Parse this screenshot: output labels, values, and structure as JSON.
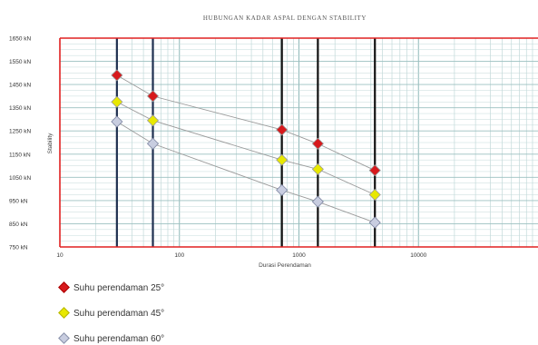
{
  "chart_data": {
    "type": "line",
    "title": "HUBUNGAN KADAR ASPAL DENGAN STABILITY",
    "xlabel": "Durasi Perendaman",
    "ylabel": "Stability",
    "xscale": "log",
    "xlim": [
      10,
      100000
    ],
    "ylim": [
      750,
      1650
    ],
    "yticks": [
      "750 kN",
      "850 kN",
      "950 kN",
      "1050 kN",
      "1150 kN",
      "1250 kN",
      "1350 kN",
      "1450 kN",
      "1550 kN",
      "1650 kN"
    ],
    "xticks": [
      "10",
      "100",
      "1000",
      "10000"
    ],
    "vertical_lines_x": [
      30,
      60,
      720,
      1440,
      4320
    ],
    "series": [
      {
        "name": "Suhu perendaman 25°",
        "color": "#d7191c",
        "x": [
          30,
          60,
          720,
          1440,
          4320
        ],
        "y": [
          1490,
          1400,
          1255,
          1195,
          1080
        ]
      },
      {
        "name": "Suhu perendaman 45°",
        "color": "#e8e800",
        "x": [
          30,
          60,
          720,
          1440,
          4320
        ],
        "y": [
          1375,
          1295,
          1125,
          1085,
          975
        ]
      },
      {
        "name": "Suhu perendaman 60°",
        "color": "#c8cde0",
        "x": [
          30,
          60,
          720,
          1440,
          4320
        ],
        "y": [
          1290,
          1195,
          995,
          945,
          855
        ]
      }
    ],
    "grid": true,
    "legend_position": "bottom-left"
  }
}
